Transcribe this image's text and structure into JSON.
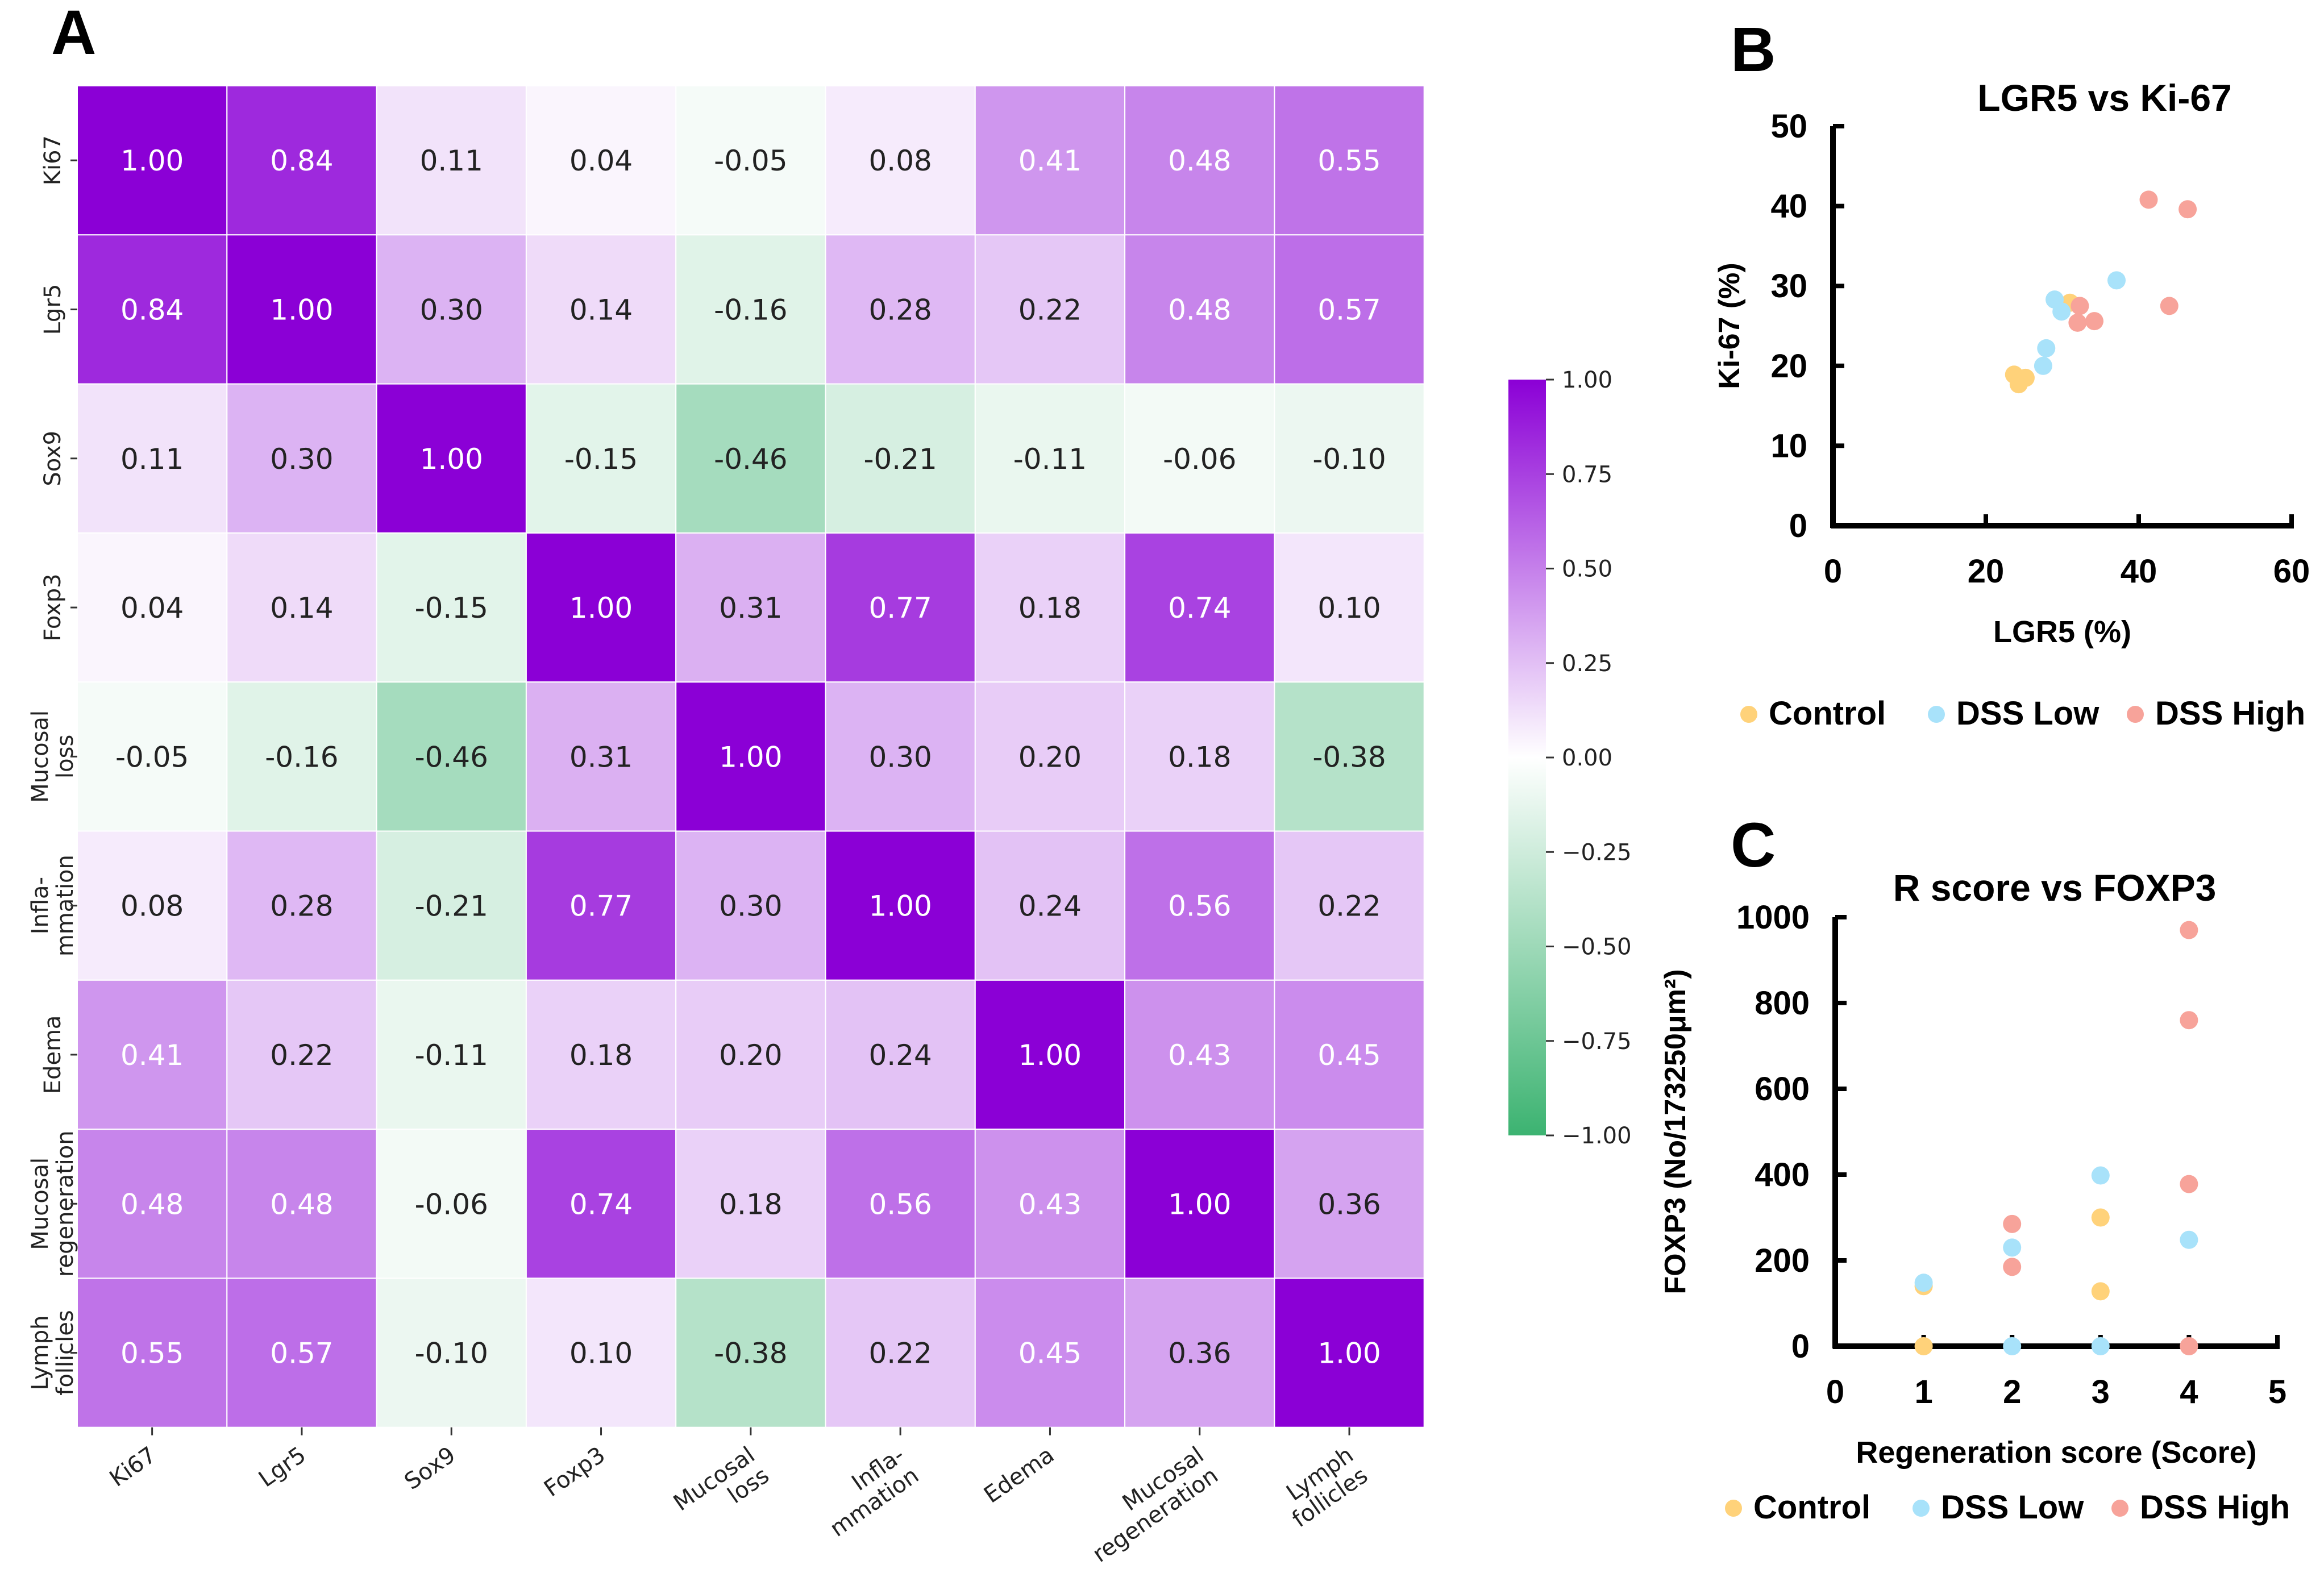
{
  "chart_data": [
    {
      "type": "heatmap",
      "panel_label": "A",
      "rows": [
        "Ki67",
        "Lgr5",
        "Sox9",
        "Foxp3",
        "Mucosal loss",
        "Infla- mmation",
        "Edema",
        "Mucosal regeneration",
        "Lymph follicles"
      ],
      "columns": [
        "Ki67",
        "Lgr5",
        "Sox9",
        "Foxp3",
        "Mucosal loss",
        "Infla- mmation",
        "Edema",
        "Mucosal regeneration",
        "Lymph follicles"
      ],
      "values": [
        [
          1.0,
          0.84,
          0.11,
          0.04,
          -0.05,
          0.08,
          0.41,
          0.48,
          0.55
        ],
        [
          0.84,
          1.0,
          0.3,
          0.14,
          -0.16,
          0.28,
          0.22,
          0.48,
          0.57
        ],
        [
          0.11,
          0.3,
          1.0,
          -0.15,
          -0.46,
          -0.21,
          -0.11,
          -0.06,
          -0.1
        ],
        [
          0.04,
          0.14,
          -0.15,
          1.0,
          0.31,
          0.77,
          0.18,
          0.74,
          0.1
        ],
        [
          -0.05,
          -0.16,
          -0.46,
          0.31,
          1.0,
          0.3,
          0.2,
          0.18,
          -0.38
        ],
        [
          0.08,
          0.28,
          -0.21,
          0.77,
          0.3,
          1.0,
          0.24,
          0.56,
          0.22
        ],
        [
          0.41,
          0.22,
          -0.11,
          0.18,
          0.2,
          0.24,
          1.0,
          0.43,
          0.45
        ],
        [
          0.48,
          0.48,
          -0.06,
          0.74,
          0.18,
          0.56,
          0.43,
          1.0,
          0.36
        ],
        [
          0.55,
          0.57,
          -0.1,
          0.1,
          -0.38,
          0.22,
          0.45,
          0.36,
          1.0
        ]
      ],
      "colorbar": {
        "range": [
          -1,
          1
        ],
        "ticks": [
          "1.00",
          "0.75",
          "0.50",
          "0.25",
          "0.00",
          "−0.25",
          "−0.50",
          "−0.75",
          "−1.00"
        ],
        "high_color": "#8B00D6",
        "mid_color": "#FFFFFF",
        "low_color": "#3CB371"
      }
    },
    {
      "type": "scatter",
      "panel_label": "B",
      "title": "LGR5 vs Ki-67",
      "xlabel": "LGR5 (%)",
      "ylabel": "Ki-67 (%)",
      "xlim": [
        0,
        60
      ],
      "ylim": [
        0,
        50
      ],
      "xticks": [
        0,
        20,
        40,
        60
      ],
      "yticks": [
        0,
        10,
        20,
        30,
        40,
        50
      ],
      "legend": "bottom",
      "series": [
        {
          "name": "Control",
          "color": "#FFD27A",
          "points": [
            [
              23.7,
              18.9
            ],
            [
              25.2,
              18.5
            ],
            [
              24.3,
              17.7
            ],
            [
              31.0,
              27.9
            ]
          ]
        },
        {
          "name": "DSS Low",
          "color": "#A8E2FA",
          "points": [
            [
              29.0,
              28.3
            ],
            [
              29.9,
              26.8
            ],
            [
              27.9,
              22.2
            ],
            [
              27.5,
              20.0
            ],
            [
              37.1,
              30.7
            ]
          ]
        },
        {
          "name": "DSS High",
          "color": "#F7A39A",
          "points": [
            [
              41.3,
              40.8
            ],
            [
              46.4,
              39.6
            ],
            [
              44.0,
              27.5
            ],
            [
              32.3,
              27.5
            ],
            [
              32.0,
              25.4
            ],
            [
              34.2,
              25.6
            ]
          ]
        }
      ]
    },
    {
      "type": "scatter",
      "panel_label": "C",
      "title": "R  score vs FOXP3",
      "xlabel": "Regeneration  score (Score)",
      "ylabel": "FOXP3 (No/173250μm²)",
      "xlim": [
        0,
        5
      ],
      "ylim": [
        0,
        1000
      ],
      "xticks": [
        0,
        1,
        2,
        3,
        4,
        5
      ],
      "yticks": [
        0,
        200,
        400,
        600,
        800,
        1000
      ],
      "legend": "bottom",
      "series": [
        {
          "name": "Control",
          "color": "#FFD27A",
          "points": [
            [
              1,
              0
            ],
            [
              1,
              140
            ],
            [
              3,
              300
            ],
            [
              3,
              128
            ]
          ]
        },
        {
          "name": "DSS Low",
          "color": "#A8E2FA",
          "points": [
            [
              1,
              148
            ],
            [
              2,
              230
            ],
            [
              2,
              0
            ],
            [
              3,
              398
            ],
            [
              3,
              0
            ],
            [
              4,
              248
            ]
          ]
        },
        {
          "name": "DSS High",
          "color": "#F7A39A",
          "points": [
            [
              2,
              285
            ],
            [
              2,
              185
            ],
            [
              4,
              970
            ],
            [
              4,
              760
            ],
            [
              4,
              378
            ],
            [
              4,
              0
            ]
          ]
        }
      ]
    }
  ]
}
